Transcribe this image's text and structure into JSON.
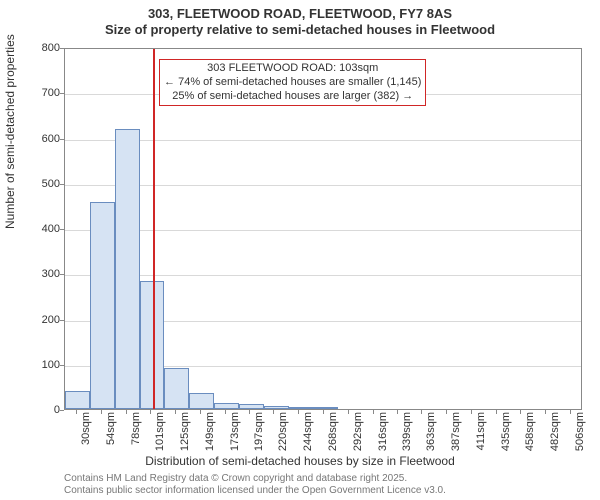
{
  "title_line1": "303, FLEETWOOD ROAD, FLEETWOOD, FY7 8AS",
  "title_line2": "Size of property relative to semi-detached houses in Fleetwood",
  "xlabel": "Distribution of semi-detached houses by size in Fleetwood",
  "ylabel": "Number of semi-detached properties",
  "footer_line1": "Contains HM Land Registry data © Crown copyright and database right 2025.",
  "footer_line2": "Contains public sector information licensed under the Open Government Licence v3.0.",
  "annotation": {
    "line1": "303 FLEETWOOD ROAD: 103sqm",
    "line2": "← 74% of semi-detached houses are smaller (1,145)",
    "line3": "25% of semi-detached houses are larger (382) →",
    "border_color": "#d02626",
    "fontsize": 11
  },
  "marker_x": 103,
  "marker_color": "#d02626",
  "chart": {
    "type": "histogram",
    "xmin": 18,
    "xmax": 518,
    "ymin": 0,
    "ymax": 800,
    "ytick_step": 100,
    "bar_fill": "#d6e3f3",
    "bar_stroke": "#6a8dbf",
    "grid_color": "#d9d9d9",
    "axis_color": "#888888",
    "background": "#ffffff",
    "tick_fontsize": 11,
    "label_fontsize": 12,
    "title_fontsize": 13,
    "bin_width": 24,
    "xticks": [
      30,
      54,
      78,
      101,
      125,
      149,
      173,
      197,
      220,
      244,
      268,
      292,
      316,
      339,
      363,
      387,
      411,
      435,
      458,
      482,
      506
    ],
    "xtick_labels": [
      "30sqm",
      "54sqm",
      "78sqm",
      "101sqm",
      "125sqm",
      "149sqm",
      "173sqm",
      "197sqm",
      "220sqm",
      "244sqm",
      "268sqm",
      "292sqm",
      "316sqm",
      "339sqm",
      "363sqm",
      "387sqm",
      "411sqm",
      "435sqm",
      "458sqm",
      "482sqm",
      "506sqm"
    ],
    "bars": [
      {
        "x": 18,
        "count": 40
      },
      {
        "x": 42,
        "count": 458
      },
      {
        "x": 66,
        "count": 618
      },
      {
        "x": 90,
        "count": 282
      },
      {
        "x": 114,
        "count": 90
      },
      {
        "x": 138,
        "count": 36
      },
      {
        "x": 162,
        "count": 14
      },
      {
        "x": 186,
        "count": 10
      },
      {
        "x": 210,
        "count": 7
      },
      {
        "x": 234,
        "count": 5
      },
      {
        "x": 258,
        "count": 3
      }
    ]
  },
  "yticks": [
    "0",
    "100",
    "200",
    "300",
    "400",
    "500",
    "600",
    "700",
    "800"
  ]
}
